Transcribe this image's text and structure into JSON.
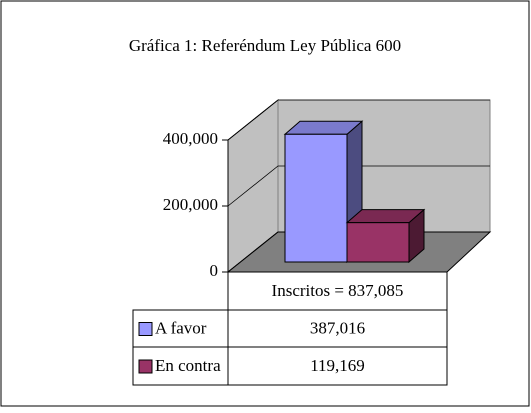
{
  "chart_data": {
    "type": "bar3d",
    "title": "Gráfica 1: Referéndum Ley Pública 600",
    "categories": [
      "Inscritos = 837,085"
    ],
    "series": [
      {
        "name": "A favor",
        "color": "#9999ff",
        "values": [
          387016
        ],
        "value_labels": [
          "387,016"
        ]
      },
      {
        "name": "En contra",
        "color": "#993366",
        "values": [
          119169
        ],
        "value_labels": [
          "119,169"
        ]
      }
    ],
    "ylim": [
      0,
      400000
    ],
    "yticks": [
      0,
      {
        "value": 200000,
        "label": "200,000"
      },
      {
        "value": 400000,
        "label": "400,000"
      }
    ],
    "grid": true
  }
}
